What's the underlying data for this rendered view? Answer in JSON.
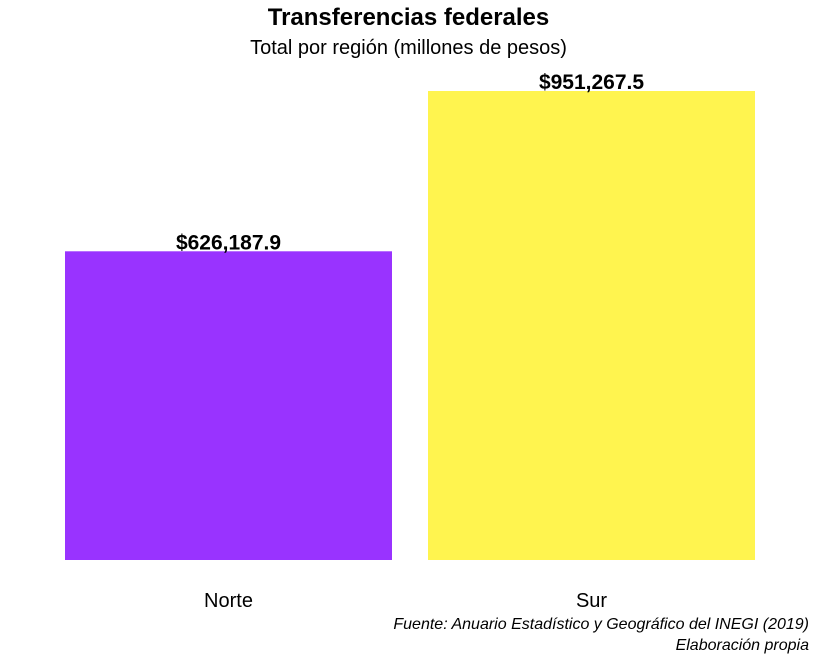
{
  "chart_data": {
    "type": "bar",
    "title": "Transferencias federales",
    "subtitle": "Total por región (millones de pesos)",
    "categories": [
      "Norte",
      "Sur"
    ],
    "values": [
      626187.9,
      951267.5
    ],
    "data_labels": [
      "$626,187.9",
      "$951,267.5"
    ],
    "colors": [
      "#9933FF",
      "#FFF44F"
    ],
    "xlabel": "",
    "ylabel": "",
    "ylim": [
      0,
      951267.5
    ],
    "grid": false,
    "legend": "none"
  },
  "caption": {
    "source": "Fuente: Anuario Estadístico y Geográfico del INEGI (2019)",
    "note": "Elaboración propia"
  }
}
